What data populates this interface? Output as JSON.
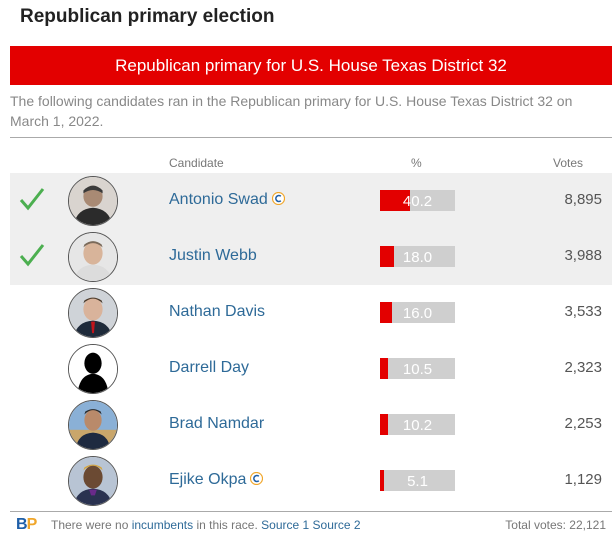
{
  "page": {
    "title": "Republican primary election"
  },
  "race": {
    "header": "Republican primary for U.S. House Texas District 32",
    "intro": "The following candidates ran in the Republican primary for U.S. House Texas District 32 on March 1, 2022."
  },
  "table": {
    "columns": {
      "candidate": "Candidate",
      "percent": "%",
      "votes": "Votes"
    },
    "candidates": [
      {
        "name": "Antonio Swad",
        "percent": 40.2,
        "percent_label": "40.2",
        "votes": "8,895",
        "winner": true,
        "ballotpedia_icon": true
      },
      {
        "name": "Justin Webb",
        "percent": 18.0,
        "percent_label": "18.0",
        "votes": "3,988",
        "winner": true,
        "ballotpedia_icon": false
      },
      {
        "name": "Nathan Davis",
        "percent": 16.0,
        "percent_label": "16.0",
        "votes": "3,533",
        "winner": false,
        "ballotpedia_icon": false
      },
      {
        "name": "Darrell Day",
        "percent": 10.5,
        "percent_label": "10.5",
        "votes": "2,323",
        "winner": false,
        "ballotpedia_icon": false
      },
      {
        "name": "Brad Namdar",
        "percent": 10.2,
        "percent_label": "10.2",
        "votes": "2,253",
        "winner": false,
        "ballotpedia_icon": false
      },
      {
        "name": "Ejike Okpa",
        "percent": 5.1,
        "percent_label": "5.1",
        "votes": "1,129",
        "winner": false,
        "ballotpedia_icon": true
      }
    ]
  },
  "footer": {
    "logo_b": "B",
    "logo_p": "P",
    "text_before": "There were no",
    "incumbents_link": "incumbents",
    "text_after": "in this race.",
    "source1": "Source 1",
    "source2": "Source 2",
    "total_votes": "Total votes: 22,121"
  },
  "colors": {
    "accent_red": "#e30000",
    "link_blue": "#2e6a98",
    "check_green": "#4caf50"
  }
}
